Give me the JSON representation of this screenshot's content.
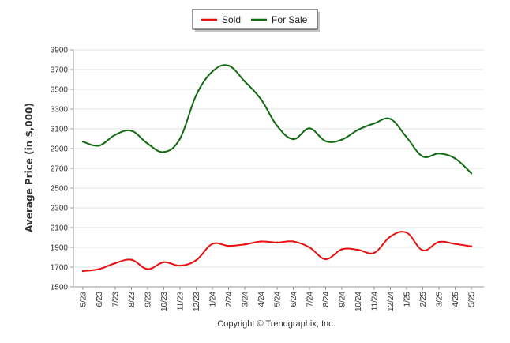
{
  "chart_data": {
    "type": "line",
    "categories": [
      "5/23",
      "6/23",
      "7/23",
      "8/23",
      "9/23",
      "10/23",
      "11/23",
      "12/23",
      "1/24",
      "2/24",
      "3/24",
      "4/24",
      "5/24",
      "6/24",
      "7/24",
      "8/24",
      "9/24",
      "10/24",
      "11/24",
      "12/24",
      "1/25",
      "2/25",
      "3/25",
      "4/25",
      "5/25"
    ],
    "series": [
      {
        "name": "Sold",
        "color": "#e81010",
        "values": [
          1660,
          1680,
          1740,
          1775,
          1680,
          1750,
          1715,
          1770,
          1935,
          1915,
          1930,
          1960,
          1950,
          1960,
          1900,
          1780,
          1880,
          1875,
          1845,
          2010,
          2050,
          1870,
          1955,
          1935,
          1910
        ]
      },
      {
        "name": "For Sale",
        "color": "#0f6b0f",
        "values": [
          2970,
          2930,
          3040,
          3080,
          2950,
          2865,
          3000,
          3440,
          3680,
          3740,
          3580,
          3400,
          3130,
          2995,
          3105,
          2975,
          2990,
          3090,
          3155,
          3200,
          3015,
          2820,
          2850,
          2800,
          2650
        ]
      }
    ],
    "ylabel": "Average Price (in $,000)",
    "ylim": [
      1500,
      3900
    ],
    "yticks": [
      1500,
      1700,
      1900,
      2100,
      2300,
      2500,
      2700,
      2900,
      3100,
      3300,
      3500,
      3700,
      3900
    ],
    "grid": true,
    "legend_position": "top-center"
  },
  "footer": {
    "copyright": "Copyright © Trendgraphix, Inc."
  }
}
